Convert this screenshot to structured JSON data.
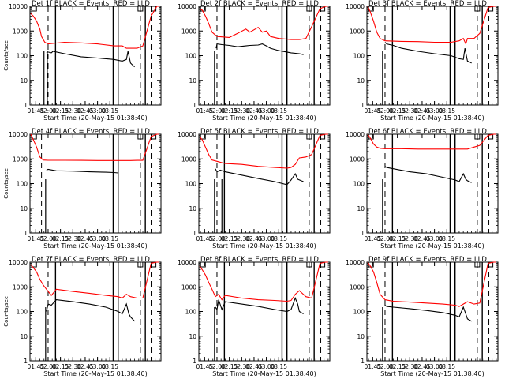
{
  "chart_data": [
    {
      "type": "line",
      "title": "Det 1f BLACK = Events, RED = LLD",
      "ylabel": "Counts/sec",
      "xlabel": "Start Time (20-May-15 01:38:40)",
      "x_ticks": [
        "01:45",
        "02:00",
        "02:15",
        "02:30",
        "02:45",
        "03:00",
        "03:15"
      ],
      "y_ticks": [
        "1",
        "10",
        "100",
        "1000",
        "10000"
      ],
      "ylim": [
        1,
        10000
      ],
      "y_scale": "log",
      "series": [
        {
          "name": "LLD",
          "color": "#ff0000",
          "x_min": [
            39,
            42,
            46,
            50,
            52,
            56,
            60,
            80,
            100,
            120,
            140,
            150,
            155,
            158,
            160,
            168,
            175,
            185,
            192,
            195
          ],
          "y": [
            5000,
            4000,
            2500,
            1200,
            600,
            350,
            300,
            350,
            330,
            300,
            250,
            250,
            200,
            200,
            200,
            200,
            250,
            4000,
            10000,
            10000
          ]
        },
        {
          "name": "Events",
          "color": "#000000",
          "x_min": [
            58,
            60,
            64,
            66,
            80,
            100,
            120,
            140,
            150,
            155,
            157,
            160,
            163,
            165
          ],
          "y": [
            130,
            140,
            130,
            150,
            120,
            90,
            80,
            70,
            60,
            70,
            150,
            50,
            40,
            35
          ]
        }
      ],
      "vlines_solid_min": [
        69,
        139,
        145,
        178
      ],
      "vlines_dashed_min": [
        60,
        172,
        186
      ],
      "spike_x_min": [
        55,
        59
      ],
      "top_markers_min": [
        43,
        172,
        188
      ]
    },
    {
      "type": "line",
      "title": "Det 2f BLACK = Events, RED = LLD",
      "ylabel": "",
      "xlabel": "Start Time (20-May-15 01:38:40)",
      "x_ticks": [
        "01:45",
        "02:00",
        "02:15",
        "02:30",
        "02:45",
        "03:00",
        "03:15"
      ],
      "y_ticks": [
        "1",
        "10",
        "100",
        "1000",
        "10000"
      ],
      "ylim": [
        1,
        10000
      ],
      "y_scale": "log",
      "series": [
        {
          "name": "LLD",
          "color": "#ff0000",
          "x_min": [
            39,
            42,
            46,
            50,
            54,
            60,
            75,
            85,
            95,
            100,
            110,
            115,
            120,
            125,
            135,
            150,
            160,
            168,
            175,
            185,
            192,
            195
          ],
          "y": [
            8000,
            7000,
            4000,
            2000,
            900,
            600,
            550,
            800,
            1200,
            900,
            1400,
            900,
            1000,
            600,
            500,
            450,
            450,
            500,
            1500,
            8000,
            10000,
            10000
          ]
        },
        {
          "name": "Events",
          "color": "#000000",
          "x_min": [
            59,
            60,
            66,
            75,
            85,
            95,
            100,
            110,
            115,
            120,
            125,
            135,
            150,
            160,
            165
          ],
          "y": [
            200,
            300,
            280,
            260,
            230,
            250,
            260,
            270,
            300,
            250,
            200,
            160,
            130,
            120,
            110
          ]
        }
      ],
      "vlines_solid_min": [
        69,
        139,
        145,
        178
      ],
      "vlines_dashed_min": [
        60,
        172,
        186
      ],
      "spike_x_min": [
        57
      ],
      "top_markers_min": [
        43,
        172,
        188
      ]
    },
    {
      "type": "line",
      "title": "Det 3f BLACK = Events, RED = LLD",
      "ylabel": "",
      "xlabel": "Start Time (20-May-15 01:38:40)",
      "x_ticks": [
        "01:45",
        "02:00",
        "02:15",
        "02:30",
        "02:45",
        "03:00",
        "03:15"
      ],
      "y_ticks": [
        "1",
        "10",
        "100",
        "1000",
        "10000"
      ],
      "ylim": [
        1,
        10000
      ],
      "y_scale": "log",
      "series": [
        {
          "name": "LLD",
          "color": "#ff0000",
          "x_min": [
            39,
            42,
            46,
            50,
            54,
            60,
            80,
            100,
            120,
            140,
            150,
            155,
            158,
            160,
            168,
            175,
            185,
            192,
            195
          ],
          "y": [
            10000,
            6000,
            2500,
            900,
            500,
            400,
            380,
            370,
            350,
            350,
            400,
            500,
            300,
            500,
            500,
            800,
            9000,
            10000,
            10000
          ]
        },
        {
          "name": "Events",
          "color": "#000000",
          "x_min": [
            60,
            62,
            70,
            80,
            100,
            120,
            140,
            150,
            155,
            157,
            160,
            163,
            165
          ],
          "y": [
            350,
            300,
            260,
            200,
            150,
            120,
            100,
            75,
            70,
            200,
            60,
            55,
            50
          ]
        }
      ],
      "vlines_solid_min": [
        69,
        139,
        145,
        178
      ],
      "vlines_dashed_min": [
        60,
        172,
        186
      ],
      "spike_x_min": [
        57
      ],
      "top_markers_min": [
        43,
        172,
        188
      ]
    },
    {
      "type": "line",
      "title": "Det 4f BLACK = Events, RED = LLD",
      "ylabel": "Counts/sec",
      "xlabel": "Start Time (20-May-15 01:38:40)",
      "x_ticks": [
        "01:45",
        "02:00",
        "02:15",
        "02:30",
        "02:45",
        "03:00",
        "03:15"
      ],
      "y_ticks": [
        "1",
        "10",
        "100",
        "1000",
        "10000"
      ],
      "ylim": [
        1,
        10000
      ],
      "y_scale": "log",
      "series": [
        {
          "name": "LLD",
          "color": "#ff0000",
          "x_min": [
            39,
            42,
            46,
            50,
            54,
            60,
            80,
            100,
            120,
            140,
            150,
            160,
            168,
            175,
            185,
            192,
            195
          ],
          "y": [
            10000,
            6000,
            3000,
            1200,
            900,
            880,
            880,
            870,
            860,
            860,
            860,
            860,
            870,
            870,
            8000,
            10000,
            10000
          ]
        },
        {
          "name": "Events",
          "color": "#000000",
          "x_min": [
            58,
            60,
            70,
            90,
            110,
            130,
            140,
            145
          ],
          "y": [
            350,
            380,
            330,
            320,
            300,
            290,
            280,
            270
          ]
        }
      ],
      "vlines_solid_min": [
        139,
        145,
        178
      ],
      "vlines_dashed_min": [
        52,
        172,
        186
      ],
      "spike_x_min": [
        57
      ],
      "top_markers_min": [
        43,
        172,
        188
      ]
    },
    {
      "type": "line",
      "title": "Det 5f BLACK = Events, RED = LLD",
      "ylabel": "",
      "xlabel": "Start Time (20-May-15 01:38:40)",
      "x_ticks": [
        "01:45",
        "02:00",
        "02:15",
        "02:30",
        "02:45",
        "03:00",
        "03:15"
      ],
      "y_ticks": [
        "1",
        "10",
        "100",
        "1000",
        "10000"
      ],
      "ylim": [
        1,
        10000
      ],
      "y_scale": "log",
      "series": [
        {
          "name": "LLD",
          "color": "#ff0000",
          "x_min": [
            39,
            42,
            46,
            50,
            54,
            60,
            70,
            90,
            110,
            130,
            145,
            150,
            155,
            160,
            168,
            175,
            185,
            192,
            195
          ],
          "y": [
            8000,
            6000,
            3000,
            1500,
            900,
            800,
            650,
            600,
            500,
            450,
            420,
            450,
            600,
            1100,
            1200,
            1500,
            9000,
            10000,
            10000
          ]
        },
        {
          "name": "Events",
          "color": "#000000",
          "x_min": [
            58,
            60,
            64,
            70,
            90,
            110,
            130,
            145,
            150,
            155,
            158,
            160,
            165
          ],
          "y": [
            400,
            300,
            350,
            300,
            220,
            160,
            120,
            90,
            140,
            250,
            150,
            140,
            120
          ]
        }
      ],
      "vlines_solid_min": [
        69,
        139,
        145,
        178
      ],
      "vlines_dashed_min": [
        60,
        172,
        186
      ],
      "spike_x_min": [
        57,
        66
      ],
      "top_markers_min": [
        43,
        172,
        188
      ]
    },
    {
      "type": "line",
      "title": "Det 6f BLACK = Events, RED = LLD",
      "ylabel": "",
      "xlabel": "Start Time (20-May-15 01:38:40)",
      "x_ticks": [
        "01:45",
        "02:00",
        "02:15",
        "02:30",
        "02:45",
        "03:00",
        "03:15"
      ],
      "y_ticks": [
        "1",
        "10",
        "100",
        "1000",
        "10000"
      ],
      "ylim": [
        1,
        10000
      ],
      "y_scale": "log",
      "series": [
        {
          "name": "LLD",
          "color": "#ff0000",
          "x_min": [
            39,
            42,
            46,
            50,
            54,
            60,
            80,
            100,
            120,
            140,
            150,
            155,
            160,
            168,
            175,
            185,
            192,
            195
          ],
          "y": [
            10000,
            7000,
            4000,
            3000,
            2700,
            2600,
            2600,
            2500,
            2500,
            2500,
            2500,
            2500,
            2500,
            3000,
            3500,
            9000,
            10000,
            10000
          ]
        },
        {
          "name": "Events",
          "color": "#000000",
          "x_min": [
            60,
            62,
            70,
            90,
            110,
            130,
            145,
            150,
            155,
            158,
            160,
            165
          ],
          "y": [
            500,
            450,
            400,
            300,
            250,
            180,
            140,
            120,
            250,
            150,
            130,
            110
          ]
        }
      ],
      "vlines_solid_min": [
        69,
        139,
        145,
        178
      ],
      "vlines_dashed_min": [
        60,
        172,
        186
      ],
      "spike_x_min": [
        57
      ],
      "top_markers_min": [
        43,
        172,
        188
      ]
    },
    {
      "type": "line",
      "title": "Det 7f BLACK = Events, RED = LLD",
      "ylabel": "Counts/sec",
      "xlabel": "Start Time (20-May-15 01:38:40)",
      "x_ticks": [
        "01:45",
        "02:00",
        "02:15",
        "02:30",
        "02:45",
        "03:00",
        "03:15"
      ],
      "y_ticks": [
        "1",
        "10",
        "100",
        "1000",
        "10000"
      ],
      "ylim": [
        1,
        10000
      ],
      "y_scale": "log",
      "series": [
        {
          "name": "LLD",
          "color": "#ff0000",
          "x_min": [
            39,
            42,
            46,
            50,
            54,
            58,
            64,
            70,
            90,
            110,
            130,
            145,
            150,
            155,
            160,
            168,
            175,
            185,
            192,
            195
          ],
          "y": [
            8000,
            6000,
            4000,
            2000,
            1200,
            800,
            450,
            800,
            650,
            550,
            450,
            400,
            350,
            500,
            400,
            350,
            350,
            9000,
            10000,
            10000
          ]
        },
        {
          "name": "Events",
          "color": "#000000",
          "x_min": [
            58,
            60,
            64,
            70,
            90,
            110,
            130,
            145,
            150,
            155,
            158,
            160,
            165
          ],
          "y": [
            100,
            200,
            180,
            300,
            250,
            200,
            150,
            100,
            80,
            200,
            80,
            60,
            40
          ]
        }
      ],
      "vlines_solid_min": [
        69,
        139,
        145,
        178
      ],
      "vlines_dashed_min": [
        60,
        172,
        186
      ],
      "spike_x_min": [
        57
      ],
      "top_markers_min": [
        43,
        172,
        188
      ]
    },
    {
      "type": "line",
      "title": "Det 8f BLACK = Events, RED = LLD",
      "ylabel": "",
      "xlabel": "Start Time (20-May-15 01:38:40)",
      "x_ticks": [
        "01:45",
        "02:00",
        "02:15",
        "02:30",
        "02:45",
        "03:00",
        "03:15"
      ],
      "y_ticks": [
        "1",
        "10",
        "100",
        "1000",
        "10000"
      ],
      "ylim": [
        1,
        10000
      ],
      "y_scale": "log",
      "series": [
        {
          "name": "LLD",
          "color": "#ff0000",
          "x_min": [
            39,
            42,
            46,
            50,
            54,
            58,
            62,
            66,
            70,
            90,
            110,
            130,
            145,
            150,
            155,
            160,
            168,
            175,
            185,
            192,
            195
          ],
          "y": [
            7000,
            5000,
            3000,
            1500,
            800,
            400,
            500,
            300,
            450,
            350,
            300,
            280,
            260,
            280,
            500,
            700,
            400,
            350,
            9000,
            10000,
            10000
          ]
        },
        {
          "name": "Events",
          "color": "#000000",
          "x_min": [
            58,
            60,
            62,
            66,
            70,
            90,
            110,
            130,
            145,
            150,
            155,
            158,
            160,
            165
          ],
          "y": [
            150,
            120,
            300,
            120,
            250,
            200,
            160,
            120,
            100,
            120,
            350,
            200,
            100,
            80
          ]
        }
      ],
      "vlines_solid_min": [
        69,
        139,
        145,
        178
      ],
      "vlines_dashed_min": [
        60,
        172,
        186
      ],
      "spike_x_min": [
        57
      ],
      "top_markers_min": [
        43,
        172,
        188
      ]
    },
    {
      "type": "line",
      "title": "Det 9f BLACK = Events, RED = LLD",
      "ylabel": "",
      "xlabel": "Start Time (20-May-15 01:38:40)",
      "x_ticks": [
        "01:45",
        "02:00",
        "02:15",
        "02:30",
        "02:45",
        "03:00",
        "03:15"
      ],
      "y_ticks": [
        "1",
        "10",
        "100",
        "1000",
        "10000"
      ],
      "ylim": [
        1,
        10000
      ],
      "y_scale": "log",
      "series": [
        {
          "name": "LLD",
          "color": "#ff0000",
          "x_min": [
            39,
            42,
            46,
            50,
            54,
            60,
            70,
            90,
            110,
            130,
            145,
            150,
            155,
            160,
            168,
            175,
            185,
            192,
            195
          ],
          "y": [
            10000,
            7000,
            4000,
            1500,
            500,
            300,
            260,
            240,
            220,
            200,
            180,
            160,
            200,
            250,
            200,
            220,
            9000,
            10000,
            10000
          ]
        },
        {
          "name": "Events",
          "color": "#000000",
          "x_min": [
            60,
            62,
            70,
            90,
            110,
            130,
            145,
            150,
            155,
            158,
            160,
            165
          ],
          "y": [
            180,
            160,
            150,
            130,
            110,
            90,
            70,
            60,
            150,
            80,
            50,
            40
          ]
        }
      ],
      "vlines_solid_min": [
        69,
        139,
        145,
        178
      ],
      "vlines_dashed_min": [
        60,
        172,
        186
      ],
      "spike_x_min": [
        57
      ],
      "top_markers_min": [
        43,
        172,
        188
      ]
    }
  ]
}
